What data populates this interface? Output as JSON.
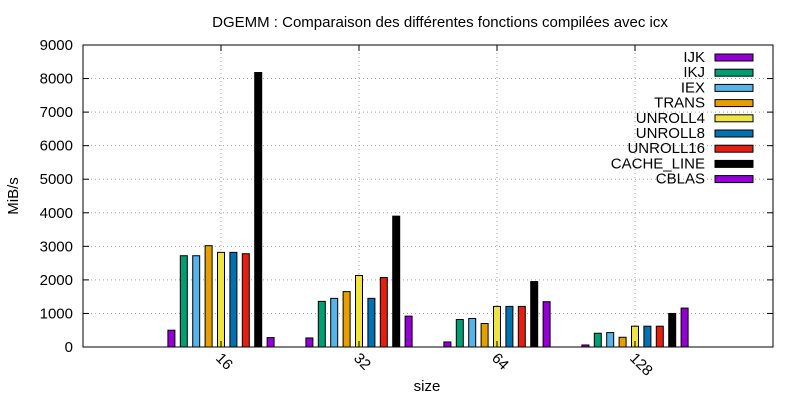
{
  "chart_data": {
    "type": "bar",
    "title": "DGEMM : Comparaison des différentes fonctions compilées avec icx",
    "xlabel": "size",
    "ylabel": "MiB/s",
    "ylim": [
      0,
      9000
    ],
    "yticks": [
      0,
      1000,
      2000,
      3000,
      4000,
      5000,
      6000,
      7000,
      8000,
      9000
    ],
    "grid": true,
    "legend_position": "top-right",
    "categories": [
      "16",
      "32",
      "64",
      "128"
    ],
    "series": [
      {
        "name": "IJK",
        "color": "#9400d3",
        "values": [
          500,
          270,
          150,
          60
        ]
      },
      {
        "name": "IKJ",
        "color": "#009e73",
        "values": [
          2720,
          1360,
          820,
          410
        ]
      },
      {
        "name": "IEX",
        "color": "#56b4e9",
        "values": [
          2720,
          1450,
          850,
          430
        ]
      },
      {
        "name": "TRANS",
        "color": "#e69f00",
        "values": [
          3020,
          1650,
          700,
          290
        ]
      },
      {
        "name": "UNROLL4",
        "color": "#f0e442",
        "values": [
          2820,
          2130,
          1210,
          620
        ]
      },
      {
        "name": "UNROLL8",
        "color": "#0072b2",
        "values": [
          2820,
          1450,
          1210,
          620
        ]
      },
      {
        "name": "UNROLL16",
        "color": "#e51e10",
        "values": [
          2780,
          2070,
          1210,
          620
        ]
      },
      {
        "name": "CACHE_LINE",
        "color": "#000000",
        "values": [
          8180,
          3900,
          1950,
          1000
        ]
      },
      {
        "name": "CBLAS",
        "color": "#9400d3",
        "values": [
          280,
          920,
          1350,
          1160
        ]
      }
    ]
  }
}
